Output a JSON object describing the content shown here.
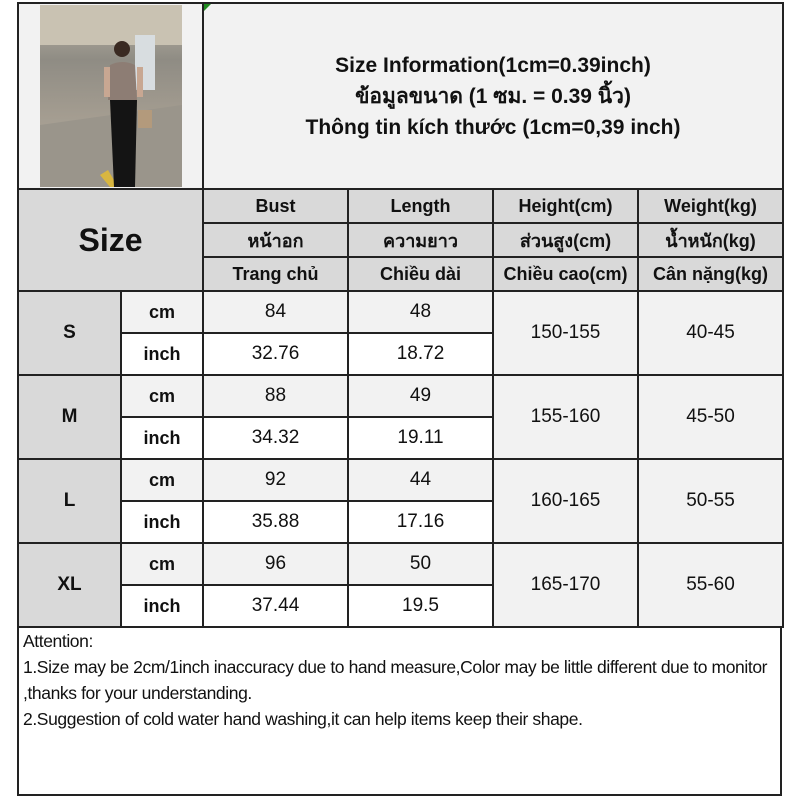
{
  "header": {
    "title_lines": [
      "Size Information(1cm=0.39inch)",
      "ข้อมูลขนาด (1 ซม. = 0.39 นิ้ว)",
      "Thông tin kích thước (1cm=0,39 inch)"
    ]
  },
  "table": {
    "size_label": "Size",
    "columns": [
      {
        "en": "Bust",
        "th": "หน้าอก",
        "vi": "Trang chủ"
      },
      {
        "en": "Length",
        "th": "ความยาว",
        "vi": "Chiều dài"
      },
      {
        "en": "Height(cm)",
        "th": "ส่วนสูง(cm)",
        "vi": "Chiều cao(cm)"
      },
      {
        "en": "Weight(kg)",
        "th": "น้ำหนัก(kg)",
        "vi": "Cân nặng(kg)"
      }
    ],
    "unit_cm": "cm",
    "unit_inch": "inch",
    "rows": [
      {
        "size": "S",
        "bust_cm": "84",
        "length_cm": "48",
        "bust_inch": "32.76",
        "length_inch": "18.72",
        "height": "150-155",
        "weight": "40-45"
      },
      {
        "size": "M",
        "bust_cm": "88",
        "length_cm": "49",
        "bust_inch": "34.32",
        "length_inch": "19.11",
        "height": "155-160",
        "weight": "45-50"
      },
      {
        "size": "L",
        "bust_cm": "92",
        "length_cm": "44",
        "bust_inch": "35.88",
        "length_inch": "17.16",
        "height": "160-165",
        "weight": "50-55"
      },
      {
        "size": "XL",
        "bust_cm": "96",
        "length_cm": "50",
        "bust_inch": "37.44",
        "length_inch": "19.5",
        "height": "165-170",
        "weight": "55-60"
      }
    ]
  },
  "attention": {
    "heading": "Attention:",
    "line1": "1.Size may be 2cm/1inch inaccuracy due to hand measure,Color may be little different due to monitor ,thanks for your understanding.",
    "line2": "2.Suggestion of cold water hand washing,it can help items keep their shape."
  },
  "colors": {
    "header_gray": "#d9d9d9",
    "light_gray": "#f2f2f2",
    "border": "#222222"
  }
}
